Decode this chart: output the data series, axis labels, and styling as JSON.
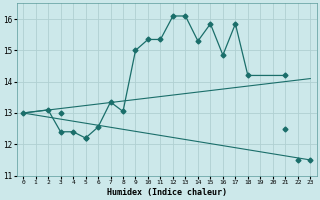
{
  "xlabel": "Humidex (Indice chaleur)",
  "ylabel": "",
  "background_color": "#cce8ea",
  "grid_color": "#b0d0d2",
  "line_color": "#1a6e6a",
  "xlim": [
    -0.5,
    23.5
  ],
  "ylim": [
    11.0,
    16.5
  ],
  "yticks": [
    11,
    12,
    13,
    14,
    15,
    16
  ],
  "xticks": [
    0,
    1,
    2,
    3,
    4,
    5,
    6,
    7,
    8,
    9,
    10,
    11,
    12,
    13,
    14,
    15,
    16,
    17,
    18,
    19,
    20,
    21,
    22,
    23
  ],
  "line1_x": [
    0,
    2,
    3,
    4,
    5,
    6,
    7,
    8,
    9,
    10,
    11,
    12,
    13,
    14,
    15,
    16,
    17,
    18,
    21
  ],
  "line1_y": [
    13.0,
    13.1,
    12.4,
    12.4,
    12.2,
    12.55,
    13.35,
    13.05,
    15.0,
    15.35,
    15.35,
    16.1,
    16.1,
    15.3,
    15.85,
    14.85,
    15.85,
    14.2,
    14.2
  ],
  "line2_x": [
    0,
    23
  ],
  "line2_y": [
    13.0,
    14.1
  ],
  "line3_x": [
    0,
    23
  ],
  "line3_y": [
    13.0,
    11.5
  ],
  "marker_x3": [
    3,
    5,
    21,
    22,
    23
  ],
  "marker_y3": [
    13.0,
    12.2,
    12.5,
    11.5,
    11.5
  ]
}
